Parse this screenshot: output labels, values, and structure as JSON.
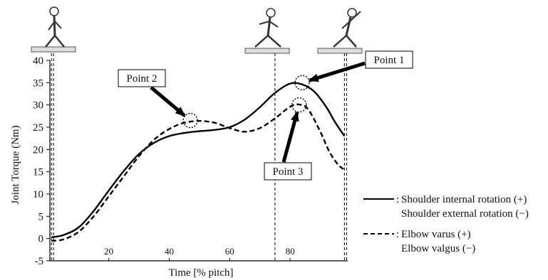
{
  "chart_data": {
    "type": "line",
    "title": "",
    "xlabel": "Time [% pitch]",
    "ylabel": "Joint Torque (Nm)",
    "xlim": [
      1,
      99
    ],
    "ylim": [
      -5,
      40
    ],
    "xticks": [
      20,
      40,
      60,
      80
    ],
    "yticks": [
      -5,
      0,
      5,
      10,
      15,
      20,
      25,
      30,
      35,
      40
    ],
    "grid": false,
    "legend_position": "bottom-right",
    "series": [
      {
        "name": "Shoulder internal rotation (+)",
        "name_line2": "Shoulder external rotation (−)",
        "style": "solid",
        "color": "#000000",
        "x": [
          1,
          5,
          10,
          15,
          20,
          25,
          30,
          35,
          40,
          45,
          50,
          55,
          60,
          65,
          70,
          75,
          80,
          84,
          88,
          92,
          95,
          98
        ],
        "y": [
          0.3,
          0.8,
          2.5,
          6.2,
          10.8,
          15.2,
          19.0,
          21.5,
          23.0,
          23.7,
          24.1,
          24.4,
          25.0,
          26.7,
          29.5,
          32.7,
          34.8,
          34.6,
          33.0,
          29.5,
          26.0,
          23.0
        ]
      },
      {
        "name": "Elbow varus (+)",
        "name_line2": "Elbow valgus (−)",
        "style": "dashed",
        "color": "#000000",
        "x": [
          1,
          5,
          10,
          15,
          20,
          25,
          30,
          35,
          40,
          45,
          50,
          55,
          60,
          65,
          70,
          75,
          80,
          83,
          86,
          90,
          93,
          96,
          98
        ],
        "y": [
          -0.5,
          -0.2,
          1.5,
          5.0,
          9.5,
          14.0,
          18.5,
          22.2,
          24.6,
          26.0,
          26.4,
          26.0,
          24.8,
          24.0,
          24.8,
          27.0,
          29.6,
          30.1,
          29.0,
          24.0,
          19.5,
          16.5,
          15.5
        ]
      }
    ],
    "phase_markers_x": [
      1,
      75,
      98
    ],
    "annotations": [
      {
        "label": "Point 1",
        "target_x": 84,
        "target_y": 35,
        "series": "shoulder"
      },
      {
        "label": "Point 2",
        "target_x": 47,
        "target_y": 26.5,
        "series": "elbow"
      },
      {
        "label": "Point 3",
        "target_x": 83,
        "target_y": 30,
        "series": "elbow"
      }
    ],
    "legend_prefix": ":"
  },
  "icons": [
    "skeleton-pitcher-icon",
    "skeleton-pitcher-icon",
    "skeleton-pitcher-icon"
  ]
}
